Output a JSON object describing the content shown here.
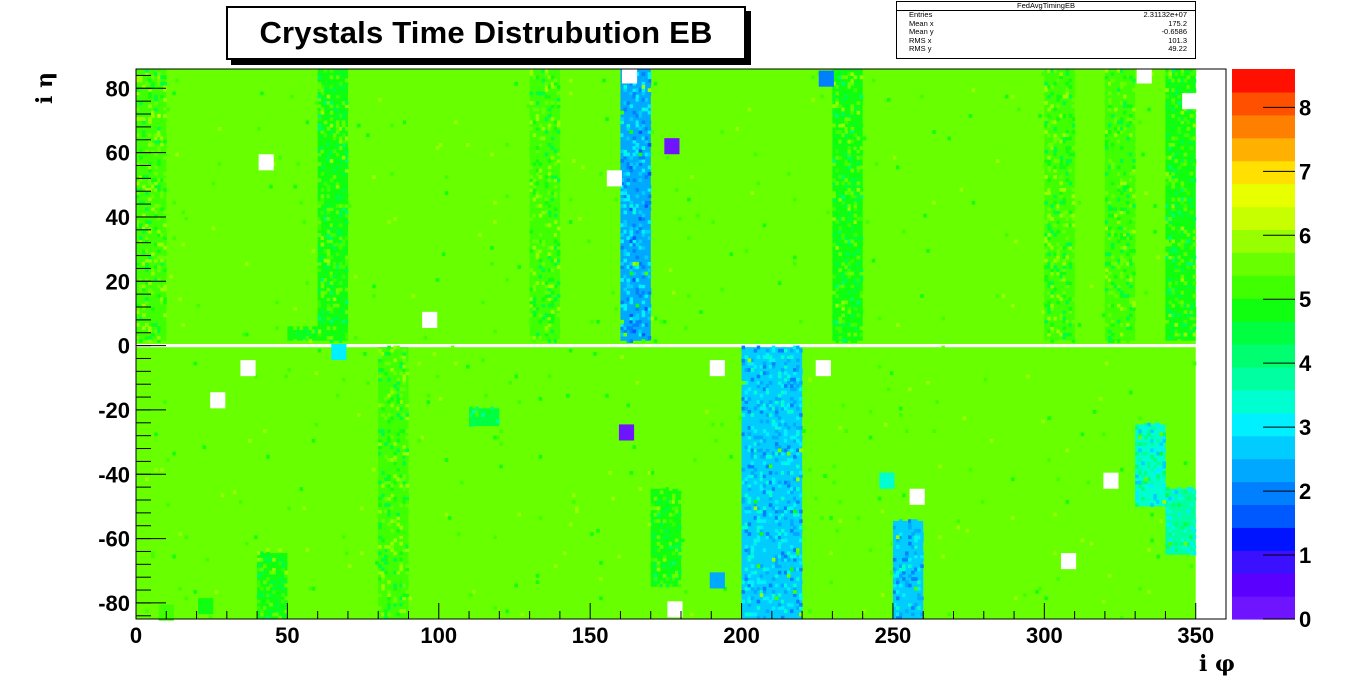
{
  "chart_data": {
    "type": "heatmap",
    "title": "Crystals Time Distrubution EB",
    "xlabel": "i φ",
    "ylabel": "i η",
    "xlim": [
      0,
      360
    ],
    "ylim": [
      -85,
      86
    ],
    "zlim": [
      0,
      8.6
    ],
    "x_ticks": [
      "0",
      "50",
      "100",
      "150",
      "200",
      "250",
      "300",
      "350"
    ],
    "x_tick_values": [
      0,
      50,
      100,
      150,
      200,
      250,
      300,
      350
    ],
    "y_ticks": [
      "80",
      "60",
      "40",
      "20",
      "0",
      "-20",
      "-40",
      "-60",
      "-80"
    ],
    "y_tick_values": [
      80,
      60,
      40,
      20,
      0,
      -20,
      -40,
      -60,
      -80
    ],
    "z_ticks": [
      "8",
      "7",
      "6",
      "5",
      "4",
      "3",
      "2",
      "1",
      "0"
    ],
    "z_tick_values": [
      8,
      7,
      6,
      5,
      4,
      3,
      2,
      1,
      0
    ],
    "baseline_value": 5.4,
    "regions": [
      {
        "phi": [
          0,
          10
        ],
        "eta": [
          1,
          85
        ],
        "value": 5.3
      },
      {
        "phi": [
          60,
          70
        ],
        "eta": [
          1,
          85
        ],
        "value": 5.0
      },
      {
        "phi": [
          50,
          60
        ],
        "eta": [
          1,
          5
        ],
        "value": 5.0
      },
      {
        "phi": [
          130,
          140
        ],
        "eta": [
          1,
          85
        ],
        "value": 5.2
      },
      {
        "phi": [
          160,
          170
        ],
        "eta": [
          1,
          85
        ],
        "value": 2.5
      },
      {
        "phi": [
          230,
          240
        ],
        "eta": [
          1,
          85
        ],
        "value": 5.0
      },
      {
        "phi": [
          300,
          310
        ],
        "eta": [
          1,
          85
        ],
        "value": 5.2
      },
      {
        "phi": [
          320,
          330
        ],
        "eta": [
          1,
          85
        ],
        "value": 5.1
      },
      {
        "phi": [
          340,
          350
        ],
        "eta": [
          1,
          85
        ],
        "value": 5.0
      },
      {
        "phi": [
          200,
          220
        ],
        "eta": [
          -85,
          -1
        ],
        "value": 2.7
      },
      {
        "phi": [
          250,
          260
        ],
        "eta": [
          -85,
          -55
        ],
        "value": 2.6
      },
      {
        "phi": [
          80,
          90
        ],
        "eta": [
          -85,
          -1
        ],
        "value": 5.2
      },
      {
        "phi": [
          170,
          180
        ],
        "eta": [
          -75,
          -45
        ],
        "value": 5.0
      },
      {
        "phi": [
          40,
          50
        ],
        "eta": [
          -85,
          -65
        ],
        "value": 5.0
      },
      {
        "phi": [
          330,
          340
        ],
        "eta": [
          -50,
          -25
        ],
        "value": 3.4
      },
      {
        "phi": [
          340,
          350
        ],
        "eta": [
          -65,
          -45
        ],
        "value": 3.6
      },
      {
        "phi": [
          110,
          120
        ],
        "eta": [
          -25,
          -20
        ],
        "value": 4.6
      }
    ],
    "small_cells": [
      {
        "phi": 177,
        "eta": 62,
        "value": 0.3
      },
      {
        "phi": 162,
        "eta": -27,
        "value": 0.3
      },
      {
        "phi": 67,
        "eta": -2,
        "value": 3.1
      },
      {
        "phi": 248,
        "eta": -42,
        "value": 3.3
      },
      {
        "phi": 192,
        "eta": -73,
        "value": 2.2
      },
      {
        "phi": 228,
        "eta": 83,
        "value": 2.1
      },
      {
        "phi": 23,
        "eta": -81,
        "value": 5.0
      },
      {
        "phi": 10,
        "eta": -83,
        "value": 5.1
      }
    ],
    "empty_cells": [
      {
        "phi": 43,
        "eta": 57
      },
      {
        "phi": 97,
        "eta": 8
      },
      {
        "phi": 158,
        "eta": 52
      },
      {
        "phi": 163,
        "eta": 84
      },
      {
        "phi": 333,
        "eta": 84
      },
      {
        "phi": 348,
        "eta": 76
      },
      {
        "phi": 37,
        "eta": -7
      },
      {
        "phi": 27,
        "eta": -17
      },
      {
        "phi": 192,
        "eta": -7
      },
      {
        "phi": 227,
        "eta": -7
      },
      {
        "phi": 258,
        "eta": -47
      },
      {
        "phi": 322,
        "eta": -42
      },
      {
        "phi": 308,
        "eta": -67
      },
      {
        "phi": 178,
        "eta": -82
      }
    ],
    "palette": [
      "#6f14ff",
      "#5a00ff",
      "#3a10ff",
      "#0014ff",
      "#0058ff",
      "#0080ff",
      "#00a8ff",
      "#00ccff",
      "#00f0ff",
      "#00ffd0",
      "#00ffa0",
      "#00ff70",
      "#00ff40",
      "#10ff10",
      "#40ff00",
      "#68ff00",
      "#98ff00",
      "#c8ff00",
      "#e8ff00",
      "#ffe000",
      "#ffb000",
      "#ff8000",
      "#ff5000",
      "#ff1000"
    ]
  },
  "stats": {
    "name": "FedAvgTimingEB",
    "rows": [
      {
        "label": "Entries",
        "value": "2.31132e+07"
      },
      {
        "label": "Mean x",
        "value": "175.2"
      },
      {
        "label": "Mean y",
        "value": "-0.6586"
      },
      {
        "label": "RMS x",
        "value": "101.3"
      },
      {
        "label": "RMS y",
        "value": "49.22"
      }
    ]
  }
}
